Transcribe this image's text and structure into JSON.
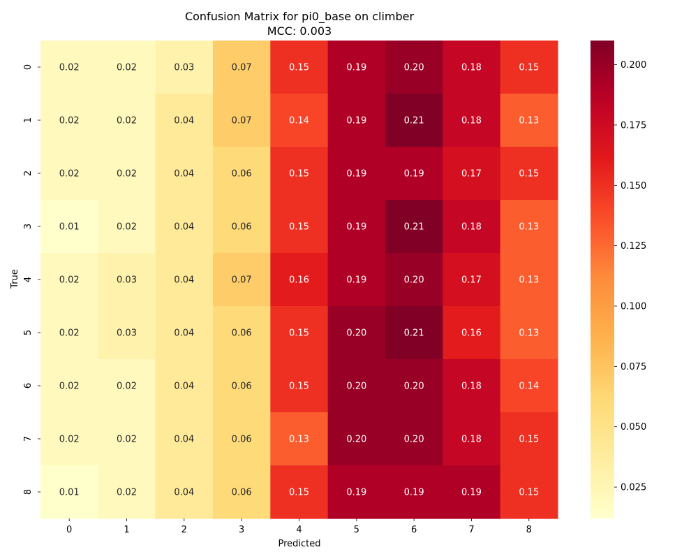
{
  "chart_data": {
    "type": "heatmap",
    "title": "Confusion Matrix for pi0_base on climber",
    "subtitle": "MCC: 0.003",
    "xlabel": "Predicted",
    "ylabel": "True",
    "x_categories": [
      "0",
      "1",
      "2",
      "3",
      "4",
      "5",
      "6",
      "7",
      "8"
    ],
    "y_categories": [
      "0",
      "1",
      "2",
      "3",
      "4",
      "5",
      "6",
      "7",
      "8"
    ],
    "values": [
      [
        0.02,
        0.02,
        0.03,
        0.07,
        0.15,
        0.19,
        0.2,
        0.18,
        0.15
      ],
      [
        0.02,
        0.02,
        0.04,
        0.07,
        0.14,
        0.19,
        0.21,
        0.18,
        0.13
      ],
      [
        0.02,
        0.02,
        0.04,
        0.06,
        0.15,
        0.19,
        0.19,
        0.17,
        0.15
      ],
      [
        0.01,
        0.02,
        0.04,
        0.06,
        0.15,
        0.19,
        0.21,
        0.18,
        0.13
      ],
      [
        0.02,
        0.03,
        0.04,
        0.07,
        0.16,
        0.19,
        0.2,
        0.17,
        0.13
      ],
      [
        0.02,
        0.03,
        0.04,
        0.06,
        0.15,
        0.2,
        0.21,
        0.16,
        0.13
      ],
      [
        0.02,
        0.02,
        0.04,
        0.06,
        0.15,
        0.2,
        0.2,
        0.18,
        0.14
      ],
      [
        0.02,
        0.02,
        0.04,
        0.06,
        0.13,
        0.2,
        0.2,
        0.18,
        0.15
      ],
      [
        0.01,
        0.02,
        0.04,
        0.06,
        0.15,
        0.19,
        0.19,
        0.19,
        0.15
      ]
    ],
    "colormap": "YlOrRd",
    "color_range": [
      0.012,
      0.21
    ],
    "colorbar_ticks": [
      "0.025",
      "0.050",
      "0.075",
      "0.100",
      "0.125",
      "0.150",
      "0.175",
      "0.200"
    ],
    "colorbar_tick_values": [
      0.025,
      0.05,
      0.075,
      0.1,
      0.125,
      0.15,
      0.175,
      0.2
    ],
    "value_format": "2 decimals"
  }
}
